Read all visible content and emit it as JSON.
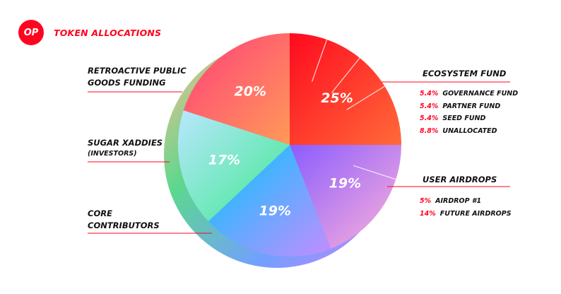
{
  "header": {
    "logo": "OP",
    "title": "TOKEN ALLOCATIONS"
  },
  "colors": {
    "brand": "#ff0420"
  },
  "chart_data": {
    "type": "pie",
    "title": "TOKEN ALLOCATIONS",
    "slices": [
      {
        "name": "ECOSYSTEM FUND",
        "value": 25,
        "label": "25%",
        "breakdown": [
          {
            "pct": "5.4%",
            "name": "GOVERNANCE FUND"
          },
          {
            "pct": "5.4%",
            "name": "PARTNER FUND"
          },
          {
            "pct": "5.4%",
            "name": "SEED FUND"
          },
          {
            "pct": "8.8%",
            "name": "UNALLOCATED"
          }
        ]
      },
      {
        "name": "USER AIRDROPS",
        "value": 19,
        "label": "19%",
        "breakdown": [
          {
            "pct": "5%",
            "name": "AIRDROP #1"
          },
          {
            "pct": "14%",
            "name": "FUTURE AIRDROPS"
          }
        ]
      },
      {
        "name": "CORE CONTRIBUTORS",
        "value": 19,
        "label": "19%"
      },
      {
        "name": "SUGAR XADDIES",
        "subtitle": "(INVESTORS)",
        "value": 17,
        "label": "17%"
      },
      {
        "name": "RETROACTIVE PUBLIC GOODS FUNDING",
        "value": 20,
        "label": "20%"
      }
    ]
  },
  "labels": {
    "ecosystem": "ECOSYSTEM FUND",
    "user_airdrops": "USER AIRDROPS",
    "core_line1": "CORE",
    "core_line2": "CONTRIBUTORS",
    "sugar": "SUGAR XADDIES",
    "sugar_sub": "(INVESTORS)",
    "retro_line1": "RETROACTIVE PUBLIC",
    "retro_line2": "GOODS FUNDING"
  }
}
